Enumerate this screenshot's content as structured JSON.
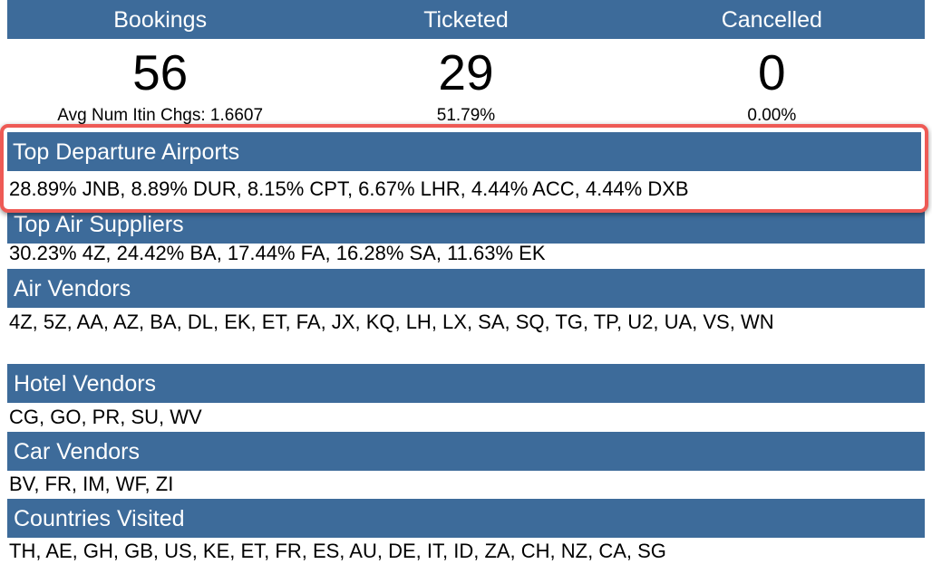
{
  "stats": {
    "headers": [
      "Bookings",
      "Ticketed",
      "Cancelled"
    ],
    "values": [
      "56",
      "29",
      "0"
    ],
    "subvalues": [
      "Avg Num Itin Chgs: 1.6607",
      "51.79%",
      "0.00%"
    ]
  },
  "sections": {
    "top_departure_airports": {
      "title": "Top Departure Airports",
      "value": "28.89% JNB, 8.89% DUR, 8.15% CPT, 6.67% LHR, 4.44% ACC, 4.44% DXB"
    },
    "top_air_suppliers": {
      "title": "Top Air Suppliers",
      "value": "30.23% 4Z, 24.42% BA, 17.44% FA, 16.28% SA, 11.63% EK"
    },
    "air_vendors": {
      "title": "Air Vendors",
      "value": "4Z, 5Z, AA, AZ, BA, DL, EK, ET, FA, JX, KQ, LH, LX, SA, SQ, TG, TP, U2, UA, VS, WN"
    },
    "hotel_vendors": {
      "title": "Hotel Vendors",
      "value": "CG, GO, PR, SU, WV"
    },
    "car_vendors": {
      "title": "Car Vendors",
      "value": "BV, FR, IM, WF, ZI"
    },
    "countries_visited": {
      "title": "Countries Visited",
      "value": "TH, AE, GH, GB, US, KE, ET, FR, ES, AU, DE, IT, ID, ZA, CH, NZ, CA, SG"
    }
  },
  "colors": {
    "header_bg": "#3d6b9a",
    "highlight_border": "#ee5a55"
  }
}
